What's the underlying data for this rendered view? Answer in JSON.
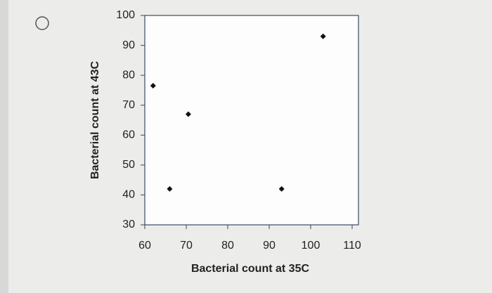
{
  "chart_data": {
    "type": "scatter",
    "x_label": "Bacterial count at 35C",
    "y_label": "Bacterial count at 43C",
    "x": [
      62,
      66,
      70.5,
      93,
      103
    ],
    "values": [
      76.5,
      42,
      67,
      42,
      93
    ],
    "color": "#111111",
    "xlim": [
      60,
      110
    ],
    "xticks": [
      60,
      70,
      80,
      90,
      100,
      110
    ],
    "ylim": [
      30,
      100
    ],
    "yticks": [
      30,
      40,
      50,
      60,
      70,
      80,
      90,
      100
    ]
  }
}
